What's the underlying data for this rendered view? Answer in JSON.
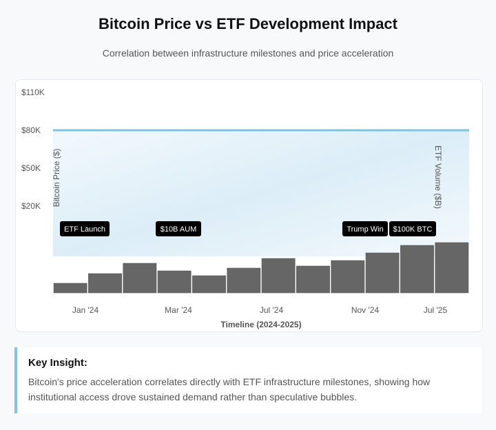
{
  "header": {
    "title": "Bitcoin Price vs ETF Development Impact",
    "subtitle": "Correlation between infrastructure milestones and price acceleration"
  },
  "chart_data": {
    "type": "bar",
    "title": "",
    "xlabel": "Timeline (2024-2025)",
    "ylabel": "Bitcoin Price ($)",
    "y2label": "ETF Volume ($B)",
    "y_ticks": [
      "$110K",
      "$80K",
      "$50K",
      "$20K"
    ],
    "x_ticks": [
      "Jan '24",
      "Mar '24",
      "Jul '24",
      "Nov '24",
      "Jul '25"
    ],
    "price_line": {
      "value": 80000,
      "color": "#7cc3e4"
    },
    "volume_bars": {
      "values": [
        14,
        28,
        43,
        32,
        25,
        36,
        50,
        39,
        47,
        58,
        69,
        73
      ],
      "color": "#666666"
    },
    "annotations": [
      "ETF Launch",
      "$10B AUM",
      "Trump Win",
      "$100K BTC"
    ]
  },
  "insight": {
    "title": "Key Insight:",
    "text": "Bitcoin's price acceleration correlates directly with ETF infrastructure milestones, showing how institutional access drove sustained demand rather than speculative bubbles."
  }
}
